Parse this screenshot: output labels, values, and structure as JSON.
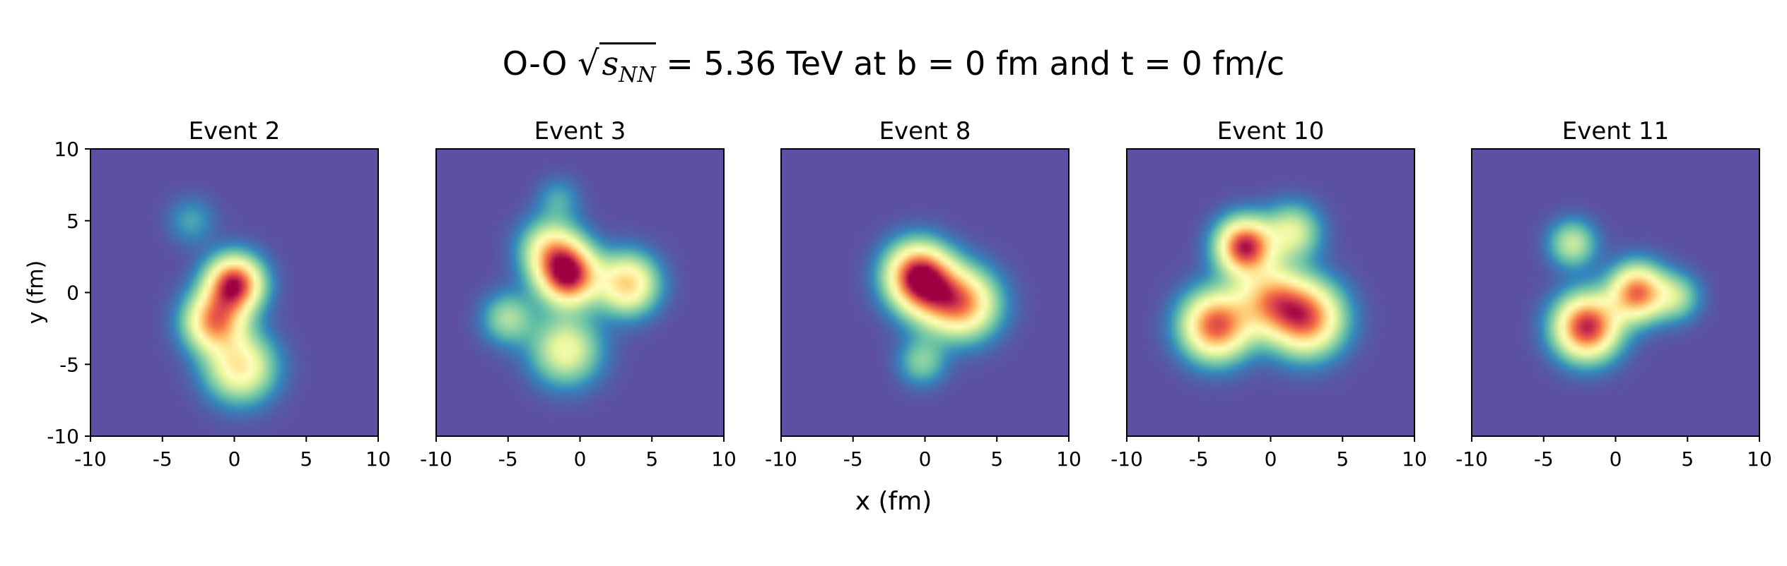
{
  "figure": {
    "suptitle_prefix": "O-O",
    "suptitle_sqrt_symbol": "√",
    "suptitle_s": "s",
    "suptitle_sub": "NN",
    "suptitle_suffix": "= 5.36 TeV at b = 0 fm and t = 0 fm/c",
    "xlabel": "x (fm)",
    "ylabel": "y (fm)"
  },
  "colors": {
    "background": "#5e4fa2",
    "colormap": [
      "#5e4fa2",
      "#3288bd",
      "#66c2a5",
      "#abdda4",
      "#e6f598",
      "#ffffbf",
      "#fee08b",
      "#fdae61",
      "#f46d43",
      "#d53e4f",
      "#9e0142"
    ]
  },
  "chart_data": [
    {
      "type": "heatmap",
      "title": "Event 2",
      "xlim": [
        -10,
        10
      ],
      "ylim": [
        -10,
        10
      ],
      "xticks": [
        -10,
        -5,
        0,
        5,
        10
      ],
      "yticks": [
        -10,
        -5,
        0,
        5,
        10
      ],
      "blobs": [
        {
          "x": 0,
          "y": 0.6,
          "amp": 0.95,
          "sigma": 1.3
        },
        {
          "x": -1.4,
          "y": -2.0,
          "amp": 0.72,
          "sigma": 1.4
        },
        {
          "x": 0.4,
          "y": -5.2,
          "amp": 0.55,
          "sigma": 1.6
        },
        {
          "x": -3.0,
          "y": 5.0,
          "amp": 0.15,
          "sigma": 1.1
        }
      ]
    },
    {
      "type": "heatmap",
      "title": "Event 3",
      "xlim": [
        -10,
        10
      ],
      "ylim": [
        -10,
        10
      ],
      "xticks": [
        -10,
        -5,
        0,
        5,
        10
      ],
      "yticks": [],
      "blobs": [
        {
          "x": -0.8,
          "y": 1.2,
          "amp": 0.95,
          "sigma": 1.4
        },
        {
          "x": -2.0,
          "y": 3.0,
          "amp": 0.5,
          "sigma": 1.4
        },
        {
          "x": 3.3,
          "y": 0.6,
          "amp": 0.62,
          "sigma": 1.4
        },
        {
          "x": -1.0,
          "y": -4.0,
          "amp": 0.45,
          "sigma": 1.6
        },
        {
          "x": -5.0,
          "y": -1.8,
          "amp": 0.3,
          "sigma": 1.2
        },
        {
          "x": -1.5,
          "y": 6.5,
          "amp": 0.15,
          "sigma": 1.0
        }
      ]
    },
    {
      "type": "heatmap",
      "title": "Event 8",
      "xlim": [
        -10,
        10
      ],
      "ylim": [
        -10,
        10
      ],
      "xticks": [
        -10,
        -5,
        0,
        5,
        10
      ],
      "yticks": [],
      "blobs": [
        {
          "x": -0.5,
          "y": 1.2,
          "amp": 0.92,
          "sigma": 1.5
        },
        {
          "x": 2.8,
          "y": -0.8,
          "amp": 0.62,
          "sigma": 1.6
        },
        {
          "x": 0.8,
          "y": -0.3,
          "amp": 0.4,
          "sigma": 1.6
        },
        {
          "x": -0.2,
          "y": -4.8,
          "amp": 0.25,
          "sigma": 1.1
        }
      ]
    },
    {
      "type": "heatmap",
      "title": "Event 10",
      "xlim": [
        -10,
        10
      ],
      "ylim": [
        -10,
        10
      ],
      "xticks": [
        -10,
        -5,
        0,
        5,
        10
      ],
      "yticks": [],
      "blobs": [
        {
          "x": -1.8,
          "y": 3.2,
          "amp": 0.95,
          "sigma": 1.3
        },
        {
          "x": -3.8,
          "y": -2.3,
          "amp": 0.85,
          "sigma": 1.6
        },
        {
          "x": 2.5,
          "y": -1.8,
          "amp": 0.8,
          "sigma": 1.7
        },
        {
          "x": 0.0,
          "y": -0.5,
          "amp": 0.6,
          "sigma": 1.6
        },
        {
          "x": 1.5,
          "y": 4.2,
          "amp": 0.4,
          "sigma": 1.3
        }
      ]
    },
    {
      "type": "heatmap",
      "title": "Event 11",
      "xlim": [
        -10,
        10
      ],
      "ylim": [
        -10,
        10
      ],
      "xticks": [
        -10,
        -5,
        0,
        5,
        10
      ],
      "yticks": [],
      "blobs": [
        {
          "x": -2.0,
          "y": -2.4,
          "amp": 0.95,
          "sigma": 1.5
        },
        {
          "x": 1.5,
          "y": 0.0,
          "amp": 0.8,
          "sigma": 1.3
        },
        {
          "x": -3.0,
          "y": 3.4,
          "amp": 0.35,
          "sigma": 1.1
        },
        {
          "x": 4.2,
          "y": -0.3,
          "amp": 0.3,
          "sigma": 1.1
        }
      ]
    }
  ]
}
